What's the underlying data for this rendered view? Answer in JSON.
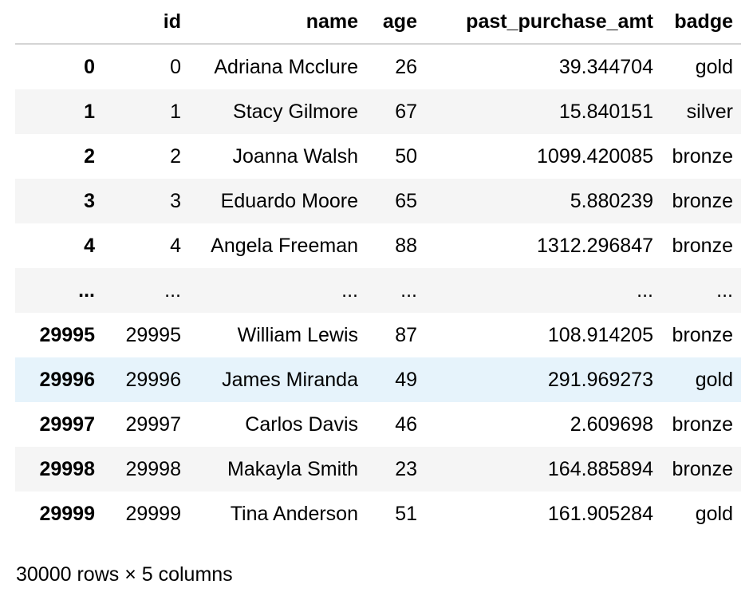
{
  "table": {
    "columns": [
      "",
      "id",
      "name",
      "age",
      "past_purchase_amt",
      "badge"
    ],
    "rows": [
      [
        "0",
        "0",
        "Adriana Mcclure",
        "26",
        "39.344704",
        "gold"
      ],
      [
        "1",
        "1",
        "Stacy Gilmore",
        "67",
        "15.840151",
        "silver"
      ],
      [
        "2",
        "2",
        "Joanna Walsh",
        "50",
        "1099.420085",
        "bronze"
      ],
      [
        "3",
        "3",
        "Eduardo Moore",
        "65",
        "5.880239",
        "bronze"
      ],
      [
        "4",
        "4",
        "Angela Freeman",
        "88",
        "1312.296847",
        "bronze"
      ],
      [
        "...",
        "...",
        "...",
        "...",
        "...",
        "..."
      ],
      [
        "29995",
        "29995",
        "William Lewis",
        "87",
        "108.914205",
        "bronze"
      ],
      [
        "29996",
        "29996",
        "James Miranda",
        "49",
        "291.969273",
        "gold"
      ],
      [
        "29997",
        "29997",
        "Carlos Davis",
        "46",
        "2.609698",
        "bronze"
      ],
      [
        "29998",
        "29998",
        "Makayla Smith",
        "23",
        "164.885894",
        "bronze"
      ],
      [
        "29999",
        "29999",
        "Tina Anderson",
        "51",
        "161.905284",
        "gold"
      ]
    ],
    "highlighted_row": 7
  },
  "summary": "30000 rows × 5 columns"
}
